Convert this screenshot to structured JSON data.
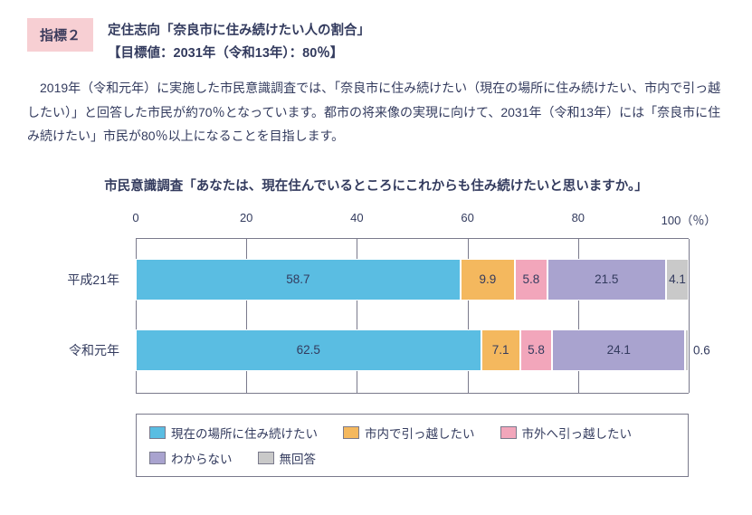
{
  "header": {
    "badge": "指標２",
    "title": "定住志向「奈良市に住み続けたい人の割合」",
    "target": "【目標値：2031年（令和13年）：80％】"
  },
  "body": "　2019年（令和元年）に実施した市民意識調査では、「奈良市に住み続けたい（現在の場所に住み続けたい、市内で引っ越したい）」と回答した市民が約70％となっています。都市の将来像の実現に向けて、2031年（令和13年）には「奈良市に住み続けたい」市民が80％以上になることを目指します。",
  "chart": {
    "title": "市民意識調査「あなたは、現在住んでいるところにこれからも住み続けたいと思いますか。」",
    "type": "stacked-bar-horizontal",
    "xlim": [
      0,
      100
    ],
    "ticks": [
      0,
      20,
      40,
      60,
      80,
      100
    ],
    "unit_suffix": "（％）",
    "grid_color": "#7a7a8c",
    "background_color": "#ffffff",
    "label_fontsize": 14,
    "value_fontsize": 13.5,
    "categories": [
      {
        "label": "平成21年",
        "segments": [
          {
            "value": 58.7,
            "color": "#5abde2",
            "text": "58.7"
          },
          {
            "value": 9.9,
            "color": "#f4b85e",
            "text": "9.9"
          },
          {
            "value": 5.8,
            "color": "#f2a6bb",
            "text": "5.8"
          },
          {
            "value": 21.5,
            "color": "#a9a3cf",
            "text": "21.5"
          },
          {
            "value": 4.1,
            "color": "#c9c9c9",
            "text": "4.1"
          }
        ]
      },
      {
        "label": "令和元年",
        "segments": [
          {
            "value": 62.5,
            "color": "#5abde2",
            "text": "62.5"
          },
          {
            "value": 7.1,
            "color": "#f4b85e",
            "text": "7.1"
          },
          {
            "value": 5.8,
            "color": "#f2a6bb",
            "text": "5.8"
          },
          {
            "value": 24.1,
            "color": "#a9a3cf",
            "text": "24.1"
          },
          {
            "value": 0.6,
            "color": "#c9c9c9",
            "text": "0.6",
            "outside": true
          }
        ]
      }
    ],
    "legend": [
      {
        "label": "現在の場所に住み続けたい",
        "color": "#5abde2"
      },
      {
        "label": "市内で引っ越したい",
        "color": "#f4b85e"
      },
      {
        "label": "市外へ引っ越したい",
        "color": "#f2a6bb"
      },
      {
        "label": "わからない",
        "color": "#a9a3cf"
      },
      {
        "label": "無回答",
        "color": "#c9c9c9"
      }
    ]
  }
}
